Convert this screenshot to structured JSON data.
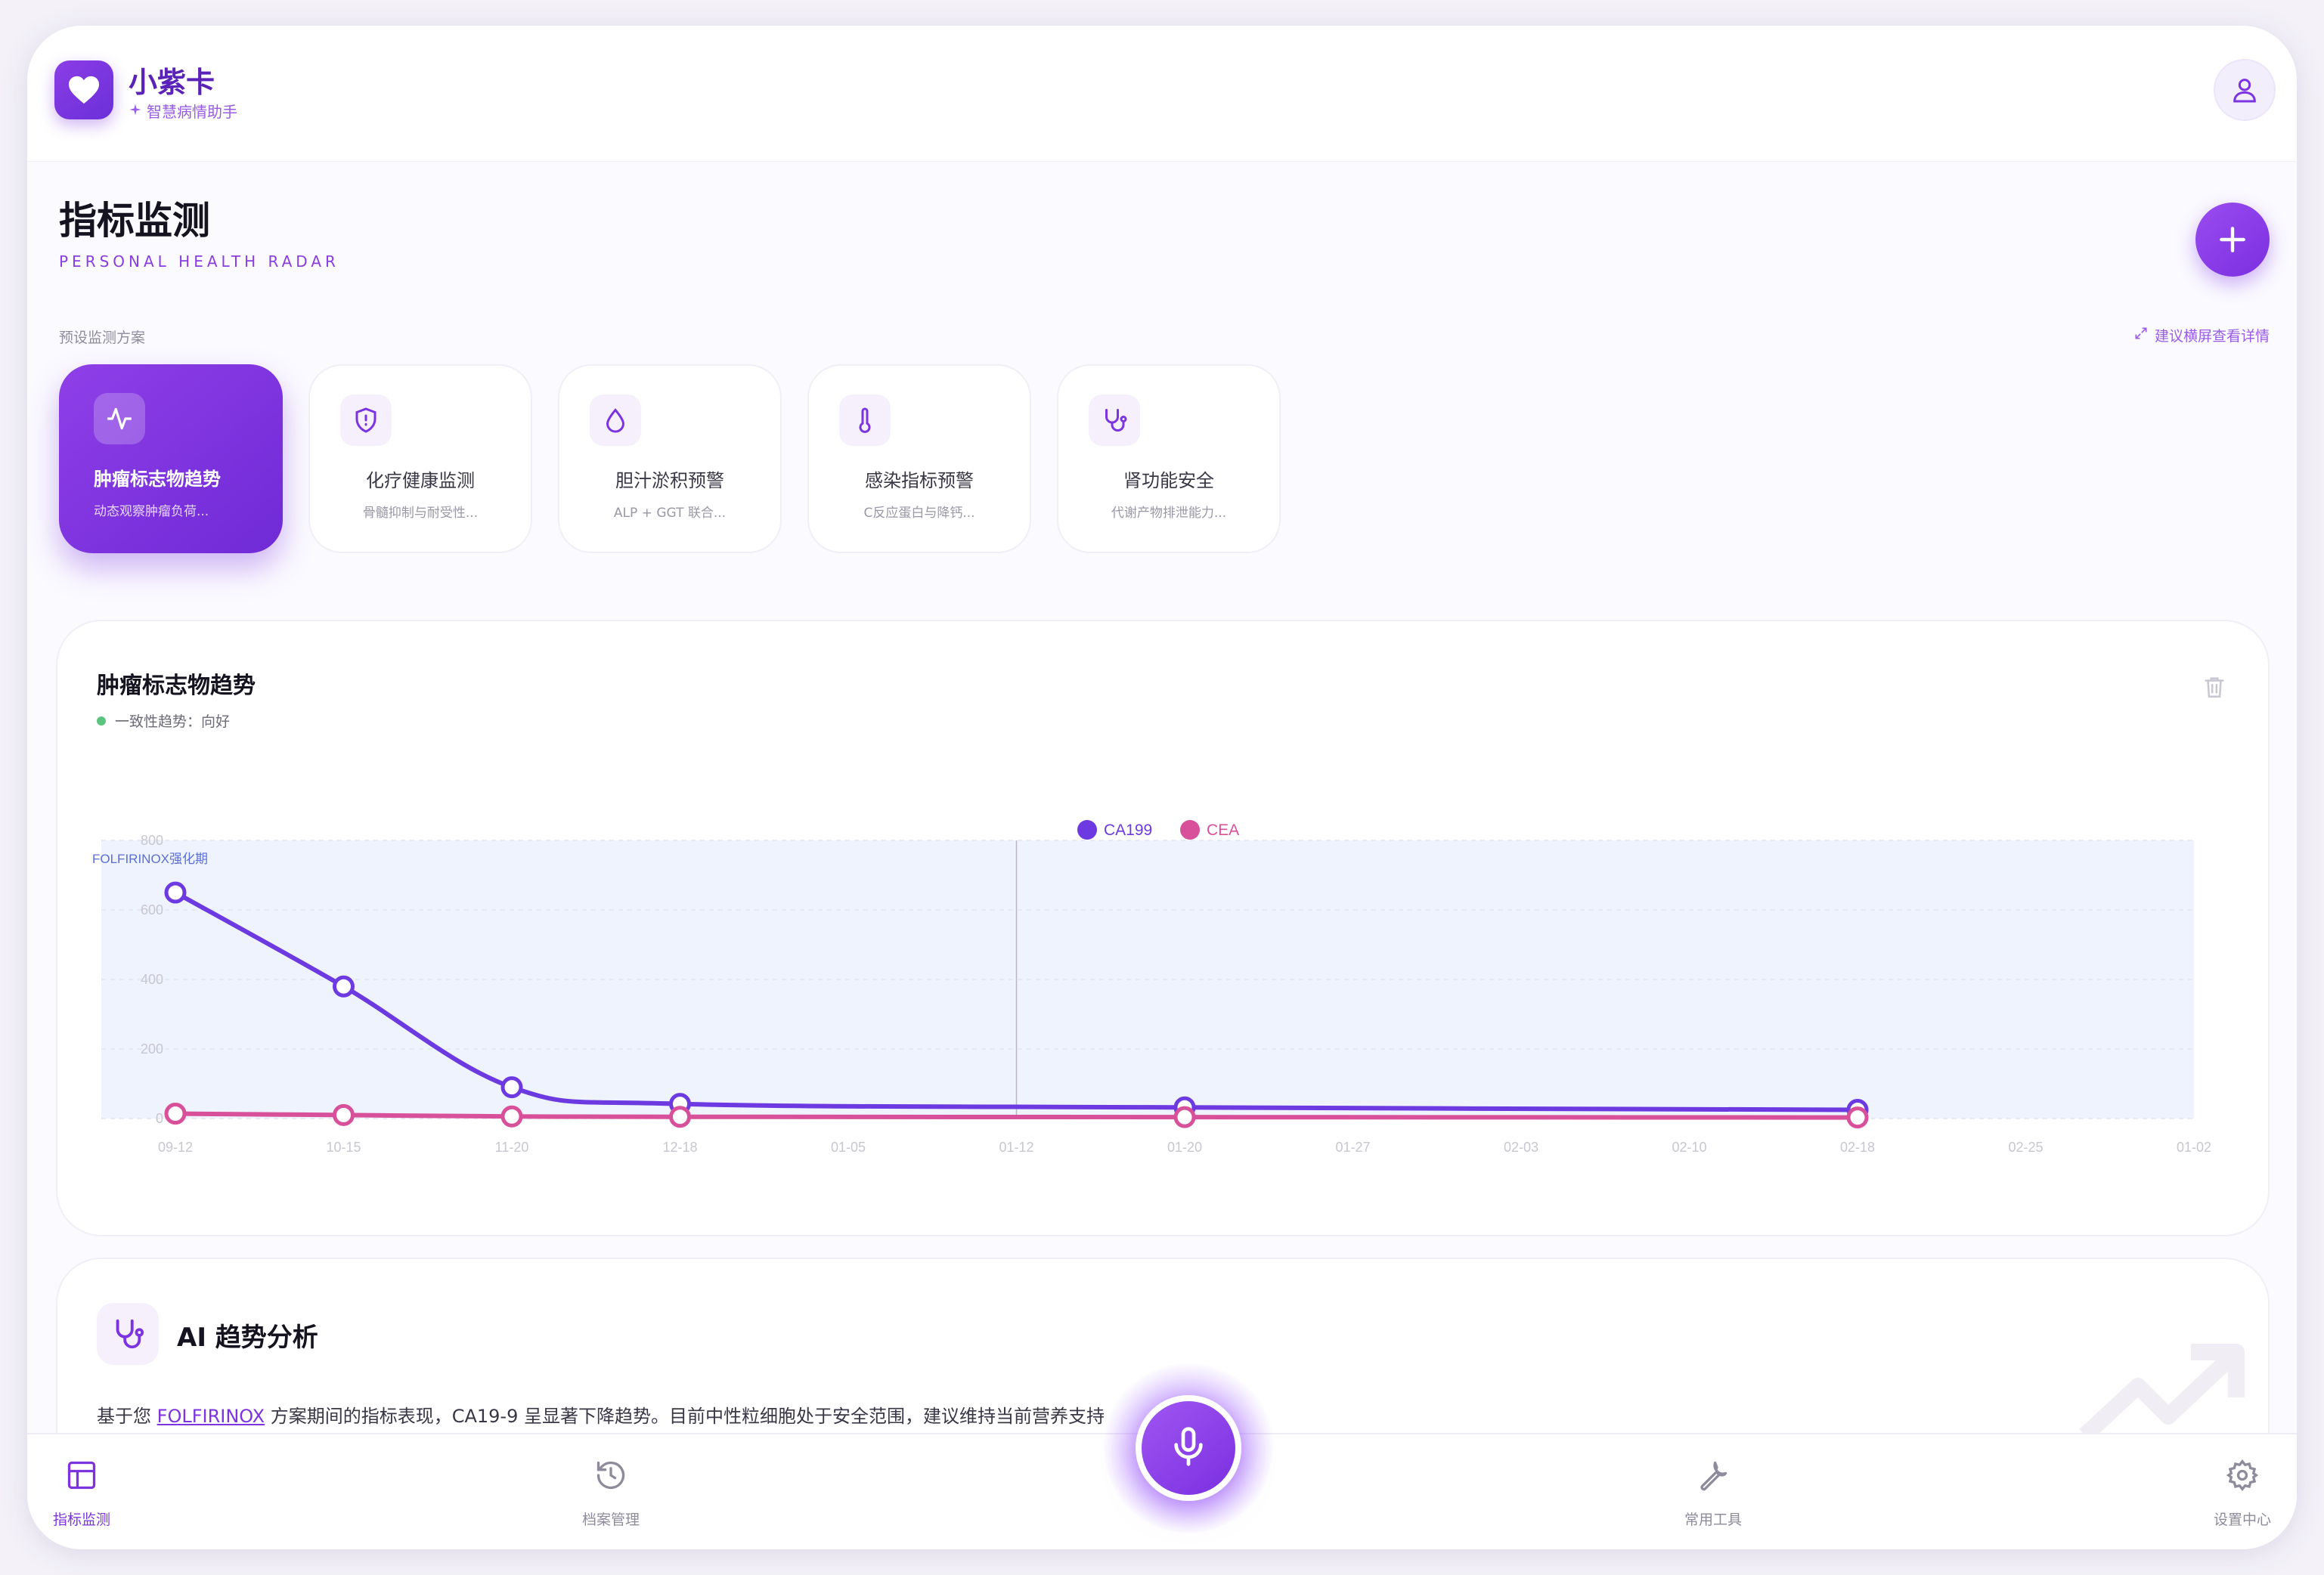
{
  "app": {
    "name": "小紫卡",
    "subtitle": "智慧病情助手"
  },
  "page": {
    "title": "指标监测",
    "subtitle": "PERSONAL HEALTH RADAR"
  },
  "plans_section": {
    "label": "预设监测方案",
    "hint": "建议横屏查看详情",
    "items": [
      {
        "name": "肿瘤标志物趋势",
        "desc": "动态观察肿瘤负荷...",
        "icon": "activity-icon",
        "active": true
      },
      {
        "name": "化疗健康监测",
        "desc": "骨髓抑制与耐受性...",
        "icon": "shield-icon",
        "active": false
      },
      {
        "name": "胆汁淤积预警",
        "desc": "ALP + GGT 联合...",
        "icon": "droplet-icon",
        "active": false
      },
      {
        "name": "感染指标预警",
        "desc": "C反应蛋白与降钙...",
        "icon": "thermometer-icon",
        "active": false
      },
      {
        "name": "肾功能安全",
        "desc": "代谢产物排泄能力...",
        "icon": "stethoscope-icon",
        "active": false
      }
    ]
  },
  "chart_card": {
    "title": "肿瘤标志物趋势",
    "trend_label": "一致性趋势：向好"
  },
  "chart_data": {
    "type": "line",
    "x": [
      "09-12",
      "10-15",
      "11-20",
      "12-18",
      "01-20",
      "02-18"
    ],
    "xticks": [
      "09-12",
      "10-15",
      "11-20",
      "12-18",
      "01-05",
      "01-12",
      "01-20",
      "01-27",
      "02-03",
      "02-10",
      "02-18",
      "02-25",
      "01-02"
    ],
    "series": [
      {
        "name": "CA199",
        "color": "#6c3ae0",
        "values": [
          650,
          380,
          90,
          42,
          32,
          25
        ]
      },
      {
        "name": "CEA",
        "color": "#d9509a",
        "values": [
          14,
          10,
          6,
          5,
          4,
          3
        ]
      }
    ],
    "ylim": [
      0,
      800
    ],
    "yticks": [
      0,
      200,
      400,
      600,
      800
    ],
    "band_label": "FOLFIRINOX强化期",
    "band_color": "#eef3fd",
    "legend": "top-center",
    "grid": true
  },
  "ai": {
    "title": "AI 趋势分析",
    "text_before": "基于您 ",
    "link": "FOLFIRINOX",
    "text_after": " 方案期间的指标表现，CA19-9 呈显著下降趋势。目前中性粒细胞处于安全范围，建议维持当前营养支持"
  },
  "nav": {
    "items": [
      {
        "label": "指标监测",
        "icon": "layout-icon",
        "active": true
      },
      {
        "label": "档案管理",
        "icon": "history-icon",
        "active": false
      },
      {
        "label": "常用工具",
        "icon": "wrench-icon",
        "active": false
      },
      {
        "label": "设置中心",
        "icon": "gear-icon",
        "active": false
      }
    ]
  },
  "colors": {
    "accent": "#7b34e0",
    "ca199": "#6c3ae0",
    "cea": "#d9509a",
    "trend_good": "#5cc47e"
  }
}
